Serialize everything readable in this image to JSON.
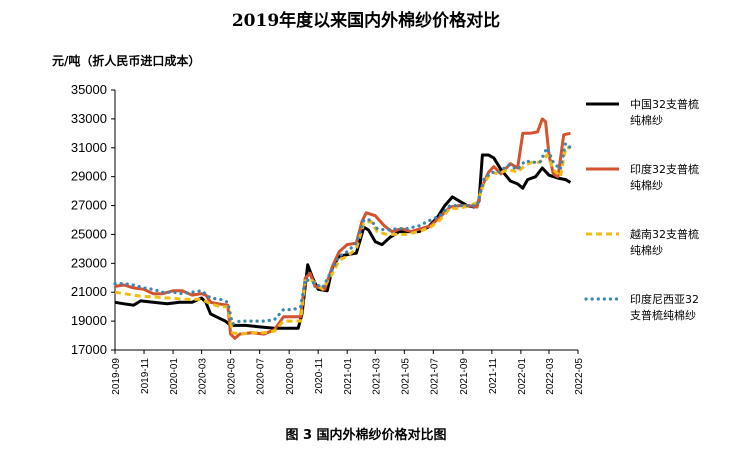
{
  "title": "2019年度以来国内外棉纱价格对比",
  "unit": "元/吨（折人民币进口成本）",
  "caption": "图 3    国内外棉纱价格对比图",
  "chart_data": {
    "type": "line",
    "title": "2019年度以来国内外棉纱价格对比",
    "ylabel": "元/吨（折人民币进口成本）",
    "ylim": [
      17000,
      35000
    ],
    "yticks": [
      17000,
      19000,
      21000,
      23000,
      25000,
      27000,
      29000,
      31000,
      33000,
      35000
    ],
    "xlim": [
      "2019-09-01",
      "2022-05-01"
    ],
    "xticks": [
      "2019-09",
      "2019-11",
      "2020-01",
      "2020-03",
      "2020-05",
      "2020-07",
      "2020-09",
      "2020-11",
      "2021-01",
      "2021-03",
      "2021-05",
      "2021-07",
      "2021-09",
      "2021-11",
      "2022-01",
      "2022-03",
      "2022-05"
    ],
    "grid": false,
    "legend_position": "right",
    "series": [
      {
        "name": "中国32支普梳纯棉纱",
        "color": "#000000",
        "style": "solid",
        "points": [
          [
            "2019-09-01",
            20300
          ],
          [
            "2019-09-20",
            20200
          ],
          [
            "2019-10-10",
            20100
          ],
          [
            "2019-10-25",
            20400
          ],
          [
            "2019-11-20",
            20300
          ],
          [
            "2019-12-20",
            20200
          ],
          [
            "2020-01-15",
            20300
          ],
          [
            "2020-02-10",
            20300
          ],
          [
            "2020-03-01",
            20600
          ],
          [
            "2020-03-10",
            20300
          ],
          [
            "2020-03-20",
            19500
          ],
          [
            "2020-04-01",
            19300
          ],
          [
            "2020-04-20",
            19000
          ],
          [
            "2020-05-01",
            18700
          ],
          [
            "2020-06-01",
            18700
          ],
          [
            "2020-07-01",
            18600
          ],
          [
            "2020-08-01",
            18500
          ],
          [
            "2020-09-01",
            18500
          ],
          [
            "2020-09-20",
            18500
          ],
          [
            "2020-09-28",
            19500
          ],
          [
            "2020-10-10",
            22900
          ],
          [
            "2020-10-20",
            22000
          ],
          [
            "2020-11-01",
            21200
          ],
          [
            "2020-11-20",
            21100
          ],
          [
            "2020-12-01",
            22700
          ],
          [
            "2020-12-15",
            23500
          ],
          [
            "2021-01-01",
            23600
          ],
          [
            "2021-01-20",
            23700
          ],
          [
            "2021-02-05",
            25500
          ],
          [
            "2021-02-15",
            25300
          ],
          [
            "2021-03-01",
            24500
          ],
          [
            "2021-03-15",
            24300
          ],
          [
            "2021-04-01",
            24800
          ],
          [
            "2021-04-20",
            25200
          ],
          [
            "2021-05-10",
            25200
          ],
          [
            "2021-06-01",
            25200
          ],
          [
            "2021-06-20",
            25500
          ],
          [
            "2021-07-10",
            26200
          ],
          [
            "2021-07-25",
            27000
          ],
          [
            "2021-08-10",
            27600
          ],
          [
            "2021-08-25",
            27300
          ],
          [
            "2021-09-10",
            27000
          ],
          [
            "2021-09-25",
            26900
          ],
          [
            "2021-10-05",
            27300
          ],
          [
            "2021-10-12",
            30500
          ],
          [
            "2021-10-25",
            30500
          ],
          [
            "2021-11-05",
            30300
          ],
          [
            "2021-11-20",
            29500
          ],
          [
            "2021-12-10",
            28700
          ],
          [
            "2021-12-25",
            28500
          ],
          [
            "2022-01-05",
            28200
          ],
          [
            "2022-01-15",
            28800
          ],
          [
            "2022-02-01",
            29000
          ],
          [
            "2022-02-15",
            29600
          ],
          [
            "2022-03-01",
            29100
          ],
          [
            "2022-03-20",
            28900
          ],
          [
            "2022-04-05",
            28800
          ],
          [
            "2022-04-15",
            28600
          ]
        ]
      },
      {
        "name": "印度32支普梳纯棉纱",
        "color": "#d2532e",
        "style": "solid",
        "points": [
          [
            "2019-09-01",
            21400
          ],
          [
            "2019-09-20",
            21500
          ],
          [
            "2019-10-10",
            21300
          ],
          [
            "2019-11-01",
            21200
          ],
          [
            "2019-11-20",
            20900
          ],
          [
            "2019-12-10",
            20900
          ],
          [
            "2020-01-01",
            21100
          ],
          [
            "2020-01-20",
            21100
          ],
          [
            "2020-02-10",
            20800
          ],
          [
            "2020-03-01",
            20900
          ],
          [
            "2020-03-10",
            20800
          ],
          [
            "2020-03-20",
            20300
          ],
          [
            "2020-04-05",
            20200
          ],
          [
            "2020-04-25",
            20100
          ],
          [
            "2020-05-01",
            18100
          ],
          [
            "2020-05-10",
            17800
          ],
          [
            "2020-05-20",
            18100
          ],
          [
            "2020-06-15",
            18200
          ],
          [
            "2020-07-10",
            18100
          ],
          [
            "2020-08-01",
            18400
          ],
          [
            "2020-08-20",
            19300
          ],
          [
            "2020-09-10",
            19300
          ],
          [
            "2020-09-25",
            19300
          ],
          [
            "2020-10-05",
            22000
          ],
          [
            "2020-10-15",
            22300
          ],
          [
            "2020-10-25",
            21400
          ],
          [
            "2020-11-15",
            21200
          ],
          [
            "2020-12-01",
            22800
          ],
          [
            "2020-12-15",
            23800
          ],
          [
            "2021-01-01",
            24300
          ],
          [
            "2021-01-20",
            24400
          ],
          [
            "2021-02-01",
            25900
          ],
          [
            "2021-02-10",
            26500
          ],
          [
            "2021-03-01",
            26300
          ],
          [
            "2021-03-20",
            25600
          ],
          [
            "2021-04-05",
            25200
          ],
          [
            "2021-04-25",
            25400
          ],
          [
            "2021-05-15",
            25200
          ],
          [
            "2021-06-05",
            25400
          ],
          [
            "2021-06-25",
            25600
          ],
          [
            "2021-07-15",
            26200
          ],
          [
            "2021-08-05",
            26900
          ],
          [
            "2021-08-25",
            27000
          ],
          [
            "2021-09-15",
            27000
          ],
          [
            "2021-10-01",
            26900
          ],
          [
            "2021-10-10",
            28200
          ],
          [
            "2021-10-25",
            29300
          ],
          [
            "2021-11-05",
            29700
          ],
          [
            "2021-11-20",
            29200
          ],
          [
            "2021-12-10",
            29900
          ],
          [
            "2021-12-25",
            29600
          ],
          [
            "2022-01-05",
            32000
          ],
          [
            "2022-01-20",
            32000
          ],
          [
            "2022-02-05",
            32100
          ],
          [
            "2022-02-15",
            33000
          ],
          [
            "2022-02-22",
            32800
          ],
          [
            "2022-03-01",
            30500
          ],
          [
            "2022-03-10",
            29200
          ],
          [
            "2022-03-20",
            29000
          ],
          [
            "2022-04-01",
            31900
          ],
          [
            "2022-04-15",
            32000
          ]
        ]
      },
      {
        "name": "越南32支普梳纯棉纱",
        "color": "#f2bb12",
        "style": "dashed",
        "points": [
          [
            "2019-09-01",
            21000
          ],
          [
            "2019-09-20",
            20900
          ],
          [
            "2019-10-10",
            20800
          ],
          [
            "2019-11-01",
            20700
          ],
          [
            "2019-11-20",
            20700
          ],
          [
            "2019-12-10",
            20600
          ],
          [
            "2020-01-01",
            20600
          ],
          [
            "2020-01-20",
            20500
          ],
          [
            "2020-02-10",
            20500
          ],
          [
            "2020-03-01",
            20500
          ],
          [
            "2020-03-20",
            20200
          ],
          [
            "2020-04-10",
            20000
          ],
          [
            "2020-04-25",
            20000
          ],
          [
            "2020-05-05",
            18200
          ],
          [
            "2020-05-20",
            18100
          ],
          [
            "2020-06-15",
            18200
          ],
          [
            "2020-07-10",
            18200
          ],
          [
            "2020-08-01",
            18300
          ],
          [
            "2020-08-20",
            19000
          ],
          [
            "2020-09-10",
            19000
          ],
          [
            "2020-09-25",
            19000
          ],
          [
            "2020-10-05",
            21800
          ],
          [
            "2020-10-20",
            21800
          ],
          [
            "2020-11-10",
            21200
          ],
          [
            "2020-12-01",
            22300
          ],
          [
            "2020-12-15",
            23200
          ],
          [
            "2021-01-01",
            23500
          ],
          [
            "2021-01-20",
            24000
          ],
          [
            "2021-02-05",
            25800
          ],
          [
            "2021-02-20",
            25900
          ],
          [
            "2021-03-05",
            25200
          ],
          [
            "2021-03-25",
            25000
          ],
          [
            "2021-04-15",
            25000
          ],
          [
            "2021-05-05",
            25000
          ],
          [
            "2021-06-01",
            25200
          ],
          [
            "2021-06-25",
            25500
          ],
          [
            "2021-07-15",
            26000
          ],
          [
            "2021-08-05",
            26800
          ],
          [
            "2021-08-25",
            26800
          ],
          [
            "2021-09-15",
            27000
          ],
          [
            "2021-10-01",
            27200
          ],
          [
            "2021-10-15",
            28500
          ],
          [
            "2021-10-30",
            29300
          ],
          [
            "2021-11-15",
            29200
          ],
          [
            "2021-12-05",
            29500
          ],
          [
            "2021-12-25",
            29300
          ],
          [
            "2022-01-10",
            29800
          ],
          [
            "2022-01-25",
            30000
          ],
          [
            "2022-02-10",
            30000
          ],
          [
            "2022-02-25",
            30500
          ],
          [
            "2022-03-10",
            29500
          ],
          [
            "2022-03-25",
            29000
          ],
          [
            "2022-04-05",
            31000
          ],
          [
            "2022-04-15",
            31000
          ]
        ]
      },
      {
        "name": "印度尼西亚32支普梳纯棉纱",
        "color": "#3b86b3",
        "style": "dotted",
        "points": [
          [
            "2019-09-01",
            21600
          ],
          [
            "2019-09-20",
            21600
          ],
          [
            "2019-10-10",
            21500
          ],
          [
            "2019-11-01",
            21300
          ],
          [
            "2019-11-20",
            21200
          ],
          [
            "2019-12-10",
            21000
          ],
          [
            "2020-01-01",
            21000
          ],
          [
            "2020-01-20",
            20900
          ],
          [
            "2020-02-10",
            21000
          ],
          [
            "2020-03-01",
            21100
          ],
          [
            "2020-03-20",
            20600
          ],
          [
            "2020-04-10",
            20500
          ],
          [
            "2020-04-25",
            20300
          ],
          [
            "2020-05-05",
            18800
          ],
          [
            "2020-05-20",
            19000
          ],
          [
            "2020-06-15",
            19000
          ],
          [
            "2020-07-10",
            19000
          ],
          [
            "2020-08-01",
            19100
          ],
          [
            "2020-08-20",
            19800
          ],
          [
            "2020-09-10",
            19800
          ],
          [
            "2020-09-25",
            20000
          ],
          [
            "2020-10-05",
            21900
          ],
          [
            "2020-10-20",
            21700
          ],
          [
            "2020-11-10",
            21300
          ],
          [
            "2020-12-01",
            22600
          ],
          [
            "2020-12-15",
            23500
          ],
          [
            "2021-01-01",
            23800
          ],
          [
            "2021-01-20",
            24400
          ],
          [
            "2021-02-05",
            26000
          ],
          [
            "2021-02-20",
            26000
          ],
          [
            "2021-03-05",
            25400
          ],
          [
            "2021-03-25",
            25300
          ],
          [
            "2021-04-15",
            25400
          ],
          [
            "2021-05-05",
            25400
          ],
          [
            "2021-06-01",
            25600
          ],
          [
            "2021-06-25",
            26000
          ],
          [
            "2021-07-15",
            26300
          ],
          [
            "2021-08-05",
            27000
          ],
          [
            "2021-08-25",
            27000
          ],
          [
            "2021-09-15",
            27000
          ],
          [
            "2021-10-01",
            27000
          ],
          [
            "2021-10-15",
            28800
          ],
          [
            "2021-10-30",
            29300
          ],
          [
            "2021-11-15",
            29300
          ],
          [
            "2021-12-05",
            29800
          ],
          [
            "2021-12-25",
            29500
          ],
          [
            "2022-01-10",
            30100
          ],
          [
            "2022-01-25",
            30000
          ],
          [
            "2022-02-10",
            30000
          ],
          [
            "2022-02-25",
            31000
          ],
          [
            "2022-03-10",
            30000
          ],
          [
            "2022-03-25",
            29500
          ],
          [
            "2022-04-05",
            31300
          ],
          [
            "2022-04-15",
            31000
          ]
        ]
      }
    ]
  }
}
